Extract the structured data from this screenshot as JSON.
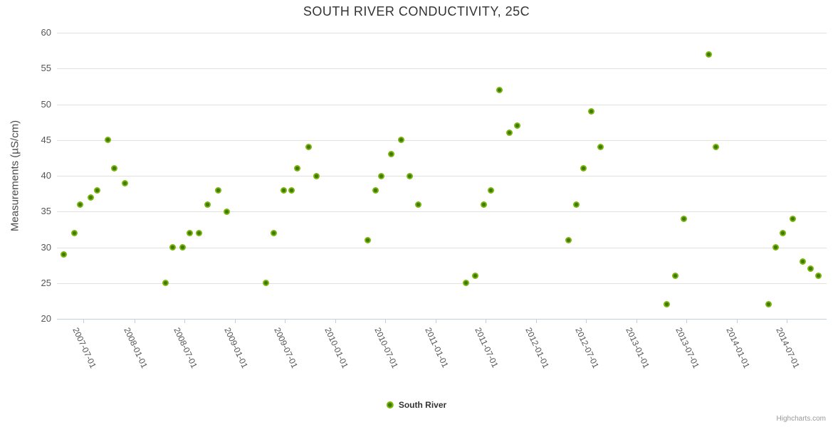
{
  "credits": "Highcharts.com",
  "chart_data": {
    "type": "scatter",
    "title": "SOUTH RIVER CONDUCTIVITY, 25C",
    "xlabel": "",
    "ylabel": "Measurements (µS/cm)",
    "ylim": [
      20,
      60
    ],
    "y_ticks": [
      20,
      25,
      30,
      35,
      40,
      45,
      50,
      55,
      60
    ],
    "x_ticks": [
      "2007-07-01",
      "2008-01-01",
      "2008-07-01",
      "2009-01-01",
      "2009-07-01",
      "2010-01-01",
      "2010-07-01",
      "2011-01-01",
      "2011-07-01",
      "2012-01-01",
      "2012-07-01",
      "2013-01-01",
      "2013-07-01",
      "2014-01-01",
      "2014-07-01"
    ],
    "x_range": [
      "2007-03-26",
      "2014-11-23"
    ],
    "grid": true,
    "legend_position": "bottom",
    "series": [
      {
        "name": "South River",
        "color": "#7cb40e",
        "points": [
          [
            "2007-04-20",
            29
          ],
          [
            "2007-05-29",
            32
          ],
          [
            "2007-06-19",
            36
          ],
          [
            "2007-07-27",
            37
          ],
          [
            "2007-08-20",
            38
          ],
          [
            "2007-09-26",
            45
          ],
          [
            "2007-10-21",
            41
          ],
          [
            "2007-11-27",
            39
          ],
          [
            "2008-04-25",
            25
          ],
          [
            "2008-05-21",
            30
          ],
          [
            "2008-06-24",
            30
          ],
          [
            "2008-07-22",
            32
          ],
          [
            "2008-08-23",
            32
          ],
          [
            "2008-09-23",
            36
          ],
          [
            "2008-11-01",
            38
          ],
          [
            "2008-12-02",
            35
          ],
          [
            "2009-04-25",
            25
          ],
          [
            "2009-05-23",
            32
          ],
          [
            "2009-06-27",
            38
          ],
          [
            "2009-07-25",
            38
          ],
          [
            "2009-08-15",
            41
          ],
          [
            "2009-09-26",
            44
          ],
          [
            "2009-10-24",
            40
          ],
          [
            "2010-04-30",
            31
          ],
          [
            "2010-05-28",
            38
          ],
          [
            "2010-06-18",
            40
          ],
          [
            "2010-07-24",
            43
          ],
          [
            "2010-08-30",
            45
          ],
          [
            "2010-09-28",
            40
          ],
          [
            "2010-10-29",
            36
          ],
          [
            "2011-04-22",
            25
          ],
          [
            "2011-05-26",
            26
          ],
          [
            "2011-06-24",
            36
          ],
          [
            "2011-07-22",
            38
          ],
          [
            "2011-08-20",
            52
          ],
          [
            "2011-09-26",
            46
          ],
          [
            "2011-10-26",
            47
          ],
          [
            "2012-04-28",
            31
          ],
          [
            "2012-05-26",
            36
          ],
          [
            "2012-06-21",
            41
          ],
          [
            "2012-07-19",
            49
          ],
          [
            "2012-08-23",
            44
          ],
          [
            "2013-04-22",
            22
          ],
          [
            "2013-05-23",
            26
          ],
          [
            "2013-06-21",
            34
          ],
          [
            "2013-09-21",
            57
          ],
          [
            "2013-10-16",
            44
          ],
          [
            "2014-04-25",
            22
          ],
          [
            "2014-05-21",
            30
          ],
          [
            "2014-06-18",
            32
          ],
          [
            "2014-07-22",
            34
          ],
          [
            "2014-08-28",
            28
          ],
          [
            "2014-09-26",
            27
          ],
          [
            "2014-10-24",
            26
          ]
        ]
      }
    ]
  }
}
